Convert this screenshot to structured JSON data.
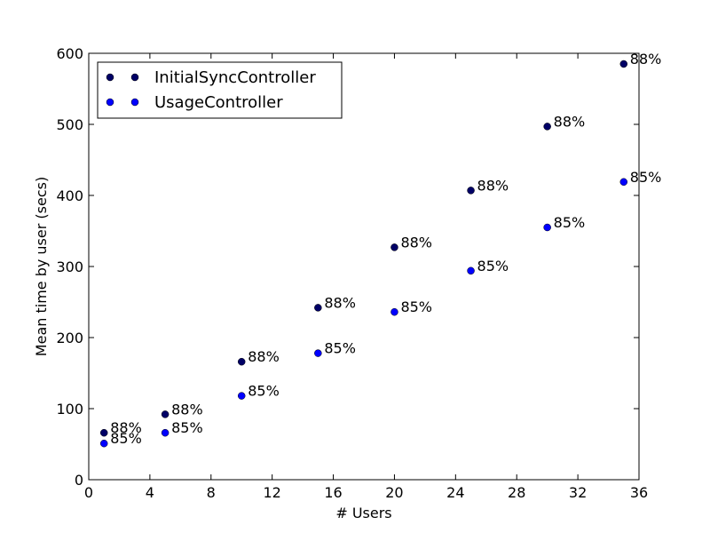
{
  "chart_data": {
    "type": "scatter",
    "title": "",
    "xlabel": "# Users",
    "ylabel": "Mean time by user (secs)",
    "xlim": [
      0,
      36
    ],
    "ylim": [
      0,
      600
    ],
    "xticks": [
      0,
      4,
      8,
      12,
      16,
      20,
      24,
      28,
      32,
      36
    ],
    "yticks": [
      0,
      100,
      200,
      300,
      400,
      500,
      600
    ],
    "grid": false,
    "legend_position": "top-left",
    "series": [
      {
        "name": "InitialSyncController",
        "color": "#000066",
        "x": [
          1,
          5,
          10,
          15,
          20,
          25,
          30,
          35
        ],
        "y": [
          66,
          92,
          166,
          242,
          327,
          407,
          497,
          585
        ],
        "labels": [
          "88%",
          "88%",
          "88%",
          "88%",
          "88%",
          "88%",
          "88%",
          "88%"
        ]
      },
      {
        "name": "UsageController",
        "color": "#0000ff",
        "x": [
          1,
          5,
          10,
          15,
          20,
          25,
          30,
          35
        ],
        "y": [
          51,
          66,
          118,
          178,
          236,
          294,
          355,
          419
        ],
        "labels": [
          "85%",
          "85%",
          "85%",
          "85%",
          "85%",
          "85%",
          "85%",
          "85%"
        ]
      }
    ]
  }
}
